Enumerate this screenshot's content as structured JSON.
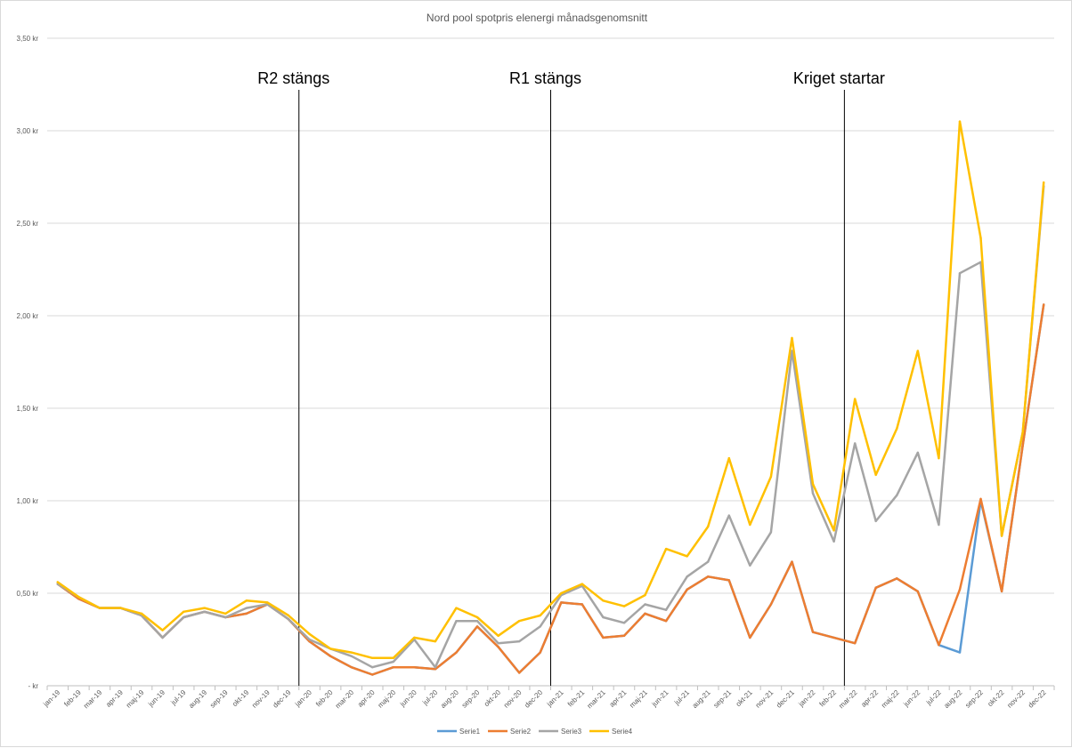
{
  "chart_data": {
    "type": "line",
    "title": "Nord pool spotpris elenergi månadsgenomsnitt",
    "xlabel": "",
    "ylabel": "",
    "ylim": [
      0,
      3.5
    ],
    "y_ticks": [
      {
        "value": 0,
        "label": "-   kr"
      },
      {
        "value": 0.5,
        "label": "0,50 kr"
      },
      {
        "value": 1.0,
        "label": "1,00 kr"
      },
      {
        "value": 1.5,
        "label": "1,50 kr"
      },
      {
        "value": 2.0,
        "label": "2,00 kr"
      },
      {
        "value": 2.5,
        "label": "2,50 kr"
      },
      {
        "value": 3.0,
        "label": "3,00 kr"
      },
      {
        "value": 3.5,
        "label": "3,50 kr"
      }
    ],
    "grid": true,
    "legend_position": "bottom",
    "categories": [
      "jan-19",
      "feb-19",
      "mar-19",
      "apr-19",
      "maj-19",
      "jun-19",
      "jul-19",
      "aug-19",
      "sep-19",
      "okt-19",
      "nov-19",
      "dec-19",
      "jan-20",
      "feb-20",
      "mar-20",
      "apr-20",
      "maj-20",
      "jun-20",
      "jul-20",
      "aug-20",
      "sep-20",
      "okt-20",
      "nov-20",
      "dec-20",
      "jan-21",
      "feb-21",
      "mar-21",
      "apr-21",
      "maj-21",
      "jun-21",
      "jul-21",
      "aug-21",
      "sep-21",
      "okt-21",
      "nov-21",
      "dec-21",
      "jan-22",
      "feb-22",
      "mar-22",
      "apr-22",
      "maj-22",
      "jun-22",
      "jul-22",
      "aug-22",
      "sep-22",
      "okt-22",
      "nov-22",
      "dec-22"
    ],
    "series": [
      {
        "name": "Serie1",
        "color": "#5b9bd5",
        "values": [
          0.55,
          0.47,
          0.42,
          0.42,
          0.38,
          0.26,
          0.37,
          0.4,
          0.37,
          0.39,
          0.44,
          0.36,
          0.24,
          0.16,
          0.1,
          0.06,
          0.1,
          0.1,
          0.09,
          0.18,
          0.32,
          0.21,
          0.07,
          0.18,
          0.45,
          0.44,
          0.26,
          0.27,
          0.39,
          0.35,
          0.52,
          0.59,
          0.57,
          0.26,
          0.44,
          0.67,
          0.29,
          0.26,
          0.23,
          0.53,
          0.58,
          0.51,
          0.22,
          0.18,
          1.0,
          0.51,
          1.3,
          2.06
        ]
      },
      {
        "name": "Serie2",
        "color": "#ed7d31",
        "values": [
          0.55,
          0.47,
          0.42,
          0.42,
          0.38,
          0.26,
          0.37,
          0.4,
          0.37,
          0.39,
          0.44,
          0.36,
          0.24,
          0.16,
          0.1,
          0.06,
          0.1,
          0.1,
          0.09,
          0.18,
          0.32,
          0.21,
          0.07,
          0.18,
          0.45,
          0.44,
          0.26,
          0.27,
          0.39,
          0.35,
          0.52,
          0.59,
          0.57,
          0.26,
          0.44,
          0.67,
          0.29,
          0.26,
          0.23,
          0.53,
          0.58,
          0.51,
          0.22,
          0.52,
          1.01,
          0.51,
          1.3,
          2.06
        ]
      },
      {
        "name": "Serie3",
        "color": "#a5a5a5",
        "values": [
          0.55,
          0.48,
          0.42,
          0.42,
          0.38,
          0.26,
          0.37,
          0.4,
          0.37,
          0.42,
          0.44,
          0.36,
          0.25,
          0.2,
          0.16,
          0.1,
          0.13,
          0.25,
          0.1,
          0.35,
          0.35,
          0.23,
          0.24,
          0.32,
          0.49,
          0.54,
          0.37,
          0.34,
          0.44,
          0.41,
          0.59,
          0.67,
          0.92,
          0.65,
          0.83,
          1.81,
          1.04,
          0.78,
          1.31,
          0.89,
          1.03,
          1.26,
          0.87,
          2.23,
          2.29,
          0.81,
          1.37,
          2.7
        ]
      },
      {
        "name": "Serie4",
        "color": "#ffc000",
        "values": [
          0.56,
          0.48,
          0.42,
          0.42,
          0.39,
          0.3,
          0.4,
          0.42,
          0.39,
          0.46,
          0.45,
          0.38,
          0.28,
          0.2,
          0.18,
          0.15,
          0.15,
          0.26,
          0.24,
          0.42,
          0.37,
          0.27,
          0.35,
          0.38,
          0.5,
          0.55,
          0.46,
          0.43,
          0.49,
          0.74,
          0.7,
          0.86,
          1.23,
          0.87,
          1.13,
          1.88,
          1.09,
          0.84,
          1.55,
          1.14,
          1.39,
          1.81,
          1.23,
          3.05,
          2.42,
          0.81,
          1.37,
          2.72
        ]
      }
    ],
    "annotations": [
      {
        "label": "R2 stängs",
        "at_category": "jan-20"
      },
      {
        "label": "R1 stängs",
        "at_category": "jan-21"
      },
      {
        "label": "Kriget startar",
        "at_category": "mar-22"
      }
    ]
  }
}
